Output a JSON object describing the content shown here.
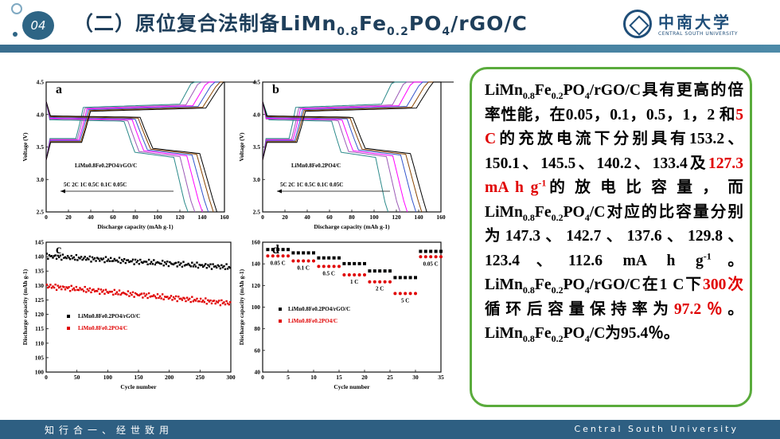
{
  "header": {
    "badge": "04",
    "title_parts": [
      "（二）原位复合法制备LiMn",
      "0.8",
      "Fe",
      "0.2",
      "PO",
      "4",
      "/rGO/C"
    ]
  },
  "logo": {
    "name_cn": "中南大学",
    "name_en": "CENTRAL SOUTH UNIVERSITY"
  },
  "footer": {
    "left": "知行合一、经世致用",
    "right": "Central South University"
  },
  "textbox": {
    "p1": "LiMn",
    "s1": "0.8",
    "p2": "Fe",
    "s2": "0.2",
    "p3": "PO",
    "s3": "4",
    "p4": "/rGO/C具有更高的倍率性能，在0.05，0.1，0.5，1，2 和",
    "r1": "5 C",
    "p5": "的充放电流下分别具有153.2、150.1、145.5、140.2、133.4及",
    "r2": "127.3 mA h g",
    "r2sup": "-1",
    "p6": "的 放 电 比 容 量 ， 而 LiMn",
    "s4": "0.8",
    "p7": "Fe",
    "s5": "0.2",
    "p8": "PO",
    "s6": "4",
    "p9": "/C对应的比容量分别为147.3、142.7、137.6、129.8、123.4、112.6 mA h g",
    "sup2": "-1",
    "p10": "。LiMn",
    "s7": "0.8",
    "p11": "Fe",
    "s8": "0.2",
    "p12": "PO",
    "s9": "4",
    "p13": "/rGO/C在1 C下",
    "r3": "300次",
    "p14": "循环后容量保持率为",
    "r4": "97.2％",
    "p15": "。 LiMn",
    "s10": "0.8",
    "p16": "Fe",
    "s11": "0.2",
    "p17": "PO",
    "s12": "4",
    "p18": "/C为95.4％。"
  },
  "chart_data": [
    {
      "panel": "a",
      "type": "line",
      "xlabel": "Discharge capacity (mAh g-1)",
      "ylabel": "Voltage (V)",
      "xlim": [
        0,
        160
      ],
      "ylim": [
        2.5,
        4.5
      ],
      "xticks": [
        0,
        20,
        40,
        60,
        80,
        100,
        120,
        140,
        160
      ],
      "yticks": [
        2.5,
        3.0,
        3.5,
        4.0,
        4.5
      ],
      "legend": "LiMn0.8Fe0.2PO4/rGO/C",
      "rate_labels": [
        "5C",
        "2C",
        "1C",
        "0.5C",
        "0.1C",
        "0.05C"
      ],
      "discharge_capacity": [
        127.3,
        133.4,
        140.2,
        145.5,
        150.1,
        153.2
      ],
      "colors": [
        "#2b8a8a",
        "#9b59b6",
        "#ff00ff",
        "#3355cc",
        "#884400",
        "#000000"
      ]
    },
    {
      "panel": "b",
      "type": "line",
      "xlabel": "Discharge capacity (mAh g-1)",
      "ylabel": "Voltage (V)",
      "xlim": [
        0,
        160
      ],
      "ylim": [
        2.5,
        4.5
      ],
      "xticks": [
        0,
        20,
        40,
        60,
        80,
        100,
        120,
        140,
        160
      ],
      "yticks": [
        2.5,
        3.0,
        3.5,
        4.0,
        4.5
      ],
      "legend": "LiMn0.8Fe0.2PO4/C",
      "rate_labels": [
        "5C",
        "2C",
        "1C",
        "0.5C",
        "0.1C",
        "0.05C"
      ],
      "discharge_capacity": [
        112.6,
        123.4,
        129.8,
        137.6,
        142.7,
        147.3
      ],
      "colors": [
        "#2b8a8a",
        "#9b59b6",
        "#ff00ff",
        "#3355cc",
        "#884400",
        "#000000"
      ]
    },
    {
      "panel": "c",
      "type": "scatter",
      "xlabel": "Cycle number",
      "ylabel": "Discharge capacity (mAh g-1)",
      "xlim": [
        0,
        300
      ],
      "ylim": [
        100,
        145
      ],
      "xticks": [
        0,
        50,
        100,
        150,
        200,
        250,
        300
      ],
      "yticks": [
        100,
        105,
        110,
        115,
        120,
        125,
        130,
        135,
        140,
        145
      ],
      "series": [
        {
          "name": "LiMn0.8Fe0.2PO4/rGO/C",
          "start": 140.2,
          "end": 136.3,
          "color": "#000000"
        },
        {
          "name": "LiMn0.8Fe0.2PO4/C",
          "start": 129.8,
          "end": 123.8,
          "color": "#e00000"
        }
      ]
    },
    {
      "panel": "d",
      "type": "scatter",
      "xlabel": "Cycle number",
      "ylabel": "Discharge capacity (mAh g-1)",
      "xlim": [
        0,
        35
      ],
      "ylim": [
        40,
        160
      ],
      "xticks": [
        0,
        5,
        10,
        15,
        20,
        25,
        30,
        35
      ],
      "yticks": [
        40,
        60,
        80,
        100,
        120,
        140,
        160
      ],
      "rate_labels": [
        "0.05 C",
        "0.1 C",
        "0.5 C",
        "1 C",
        "2 C",
        "5 C",
        "0.05 C"
      ],
      "series": [
        {
          "name": "LiMn0.8Fe0.2PO4/rGO/C",
          "color": "#000000",
          "values": [
            153.2,
            153.2,
            153.2,
            153.2,
            153.2,
            150.1,
            150.1,
            150.1,
            150.1,
            150.1,
            145.5,
            145.5,
            145.5,
            145.5,
            145.5,
            140.2,
            140.2,
            140.2,
            140.2,
            140.2,
            133.4,
            133.4,
            133.4,
            133.4,
            133.4,
            127.3,
            127.3,
            127.3,
            127.3,
            127.3,
            151.5,
            151.5,
            151.5,
            151.5,
            151.5
          ]
        },
        {
          "name": "LiMn0.8Fe0.2PO4/C",
          "color": "#e00000",
          "values": [
            147.3,
            147.3,
            147.3,
            147.3,
            147.3,
            142.7,
            142.7,
            142.7,
            142.7,
            142.7,
            137.6,
            137.6,
            137.6,
            137.6,
            137.6,
            129.8,
            129.8,
            129.8,
            129.8,
            129.8,
            123.4,
            123.4,
            123.4,
            123.4,
            123.4,
            112.6,
            112.6,
            112.6,
            112.6,
            112.6,
            146.5,
            146.5,
            146.5,
            146.5,
            146.5
          ]
        }
      ]
    }
  ]
}
